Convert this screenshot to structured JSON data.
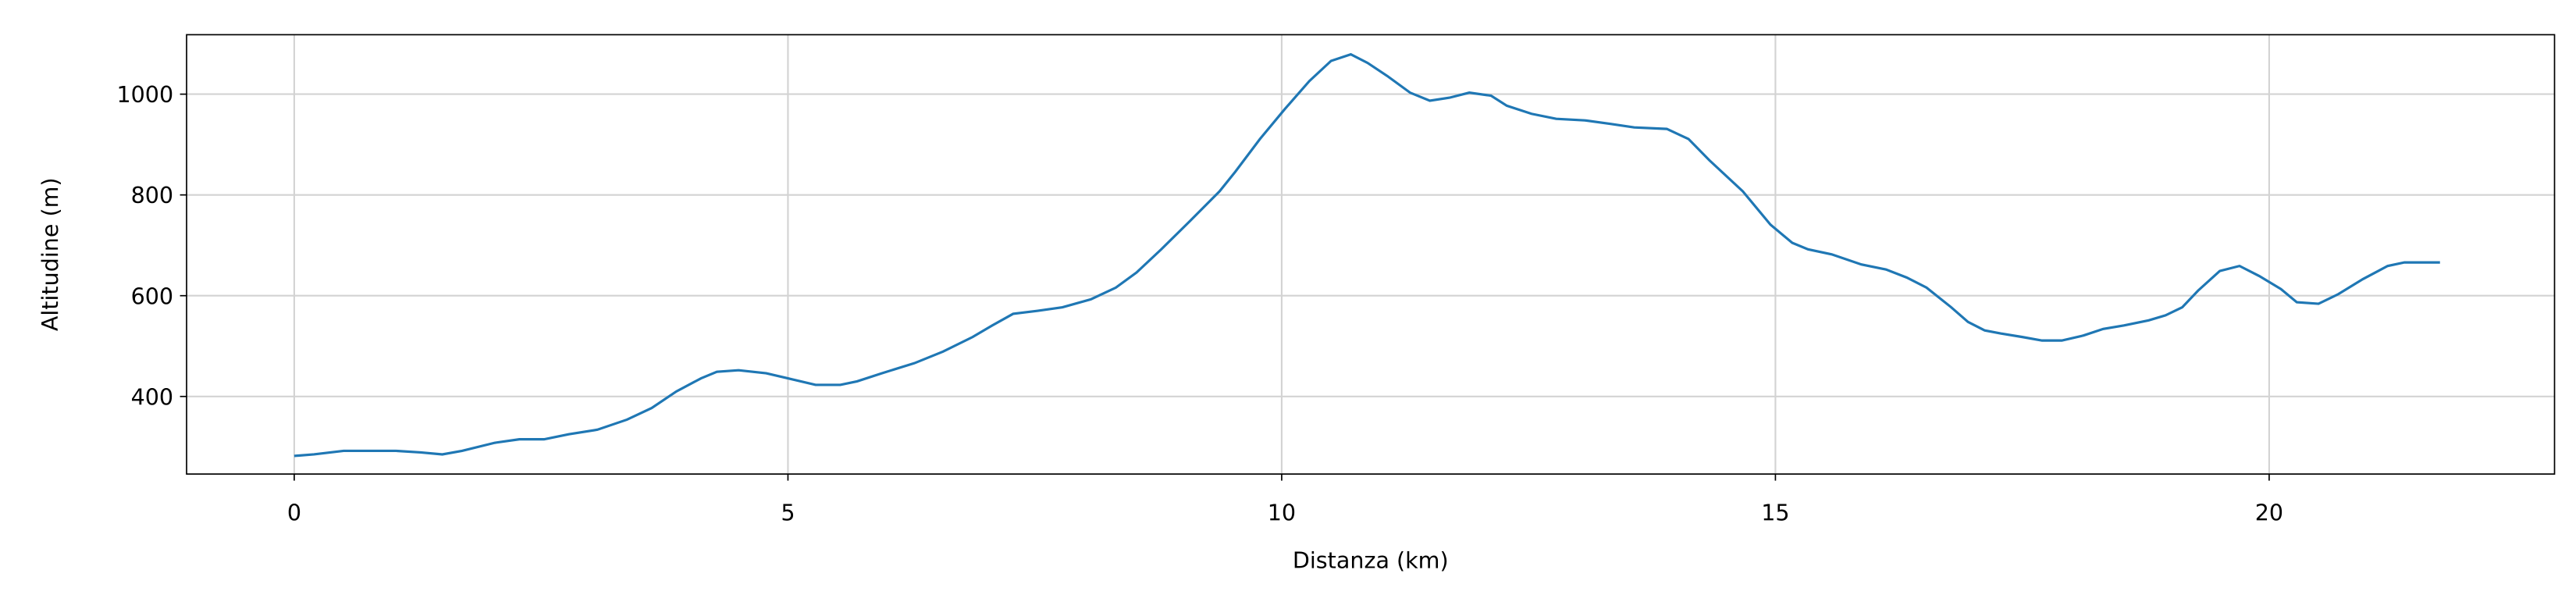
{
  "chart_data": {
    "type": "line",
    "xlabel": "Distanza (km)",
    "ylabel": "Altitudine (m)",
    "x": [
      0,
      0.2,
      0.5,
      1.03,
      1.28,
      1.5,
      1.7,
      2.03,
      2.28,
      2.53,
      2.78,
      3.07,
      3.37,
      3.62,
      3.87,
      4.12,
      4.28,
      4.5,
      4.78,
      5,
      5.28,
      5.53,
      5.7,
      5.95,
      6.28,
      6.57,
      6.87,
      7.07,
      7.28,
      7.53,
      7.78,
      8.07,
      8.32,
      8.53,
      8.78,
      9.07,
      9.37,
      9.53,
      9.78,
      10.03,
      10.28,
      10.5,
      10.7,
      10.87,
      11.07,
      11.3,
      11.5,
      11.7,
      11.9,
      12.12,
      12.28,
      12.53,
      12.78,
      13.07,
      13.33,
      13.57,
      13.9,
      14.12,
      14.33,
      14.67,
      14.95,
      15.17,
      15.33,
      15.57,
      15.87,
      16.12,
      16.33,
      16.53,
      16.78,
      16.95,
      17.12,
      17.28,
      17.5,
      17.7,
      17.9,
      18.12,
      18.32,
      18.53,
      18.78,
      18.95,
      19.12,
      19.28,
      19.5,
      19.7,
      19.9,
      20.12,
      20.28,
      20.5,
      20.7,
      20.95,
      21.2,
      21.37,
      21.73
    ],
    "series": [
      {
        "color": "#1f77b4",
        "values": [
          282,
          285,
          292,
          292,
          289,
          285,
          292,
          308,
          315,
          315,
          325,
          334,
          354,
          377,
          410,
          436,
          449,
          452,
          446,
          436,
          423,
          423,
          430,
          446,
          466,
          489,
          518,
          541,
          564,
          570,
          577,
          593,
          616,
          646,
          692,
          748,
          807,
          846,
          911,
          970,
          1026,
          1066,
          1079,
          1062,
          1036,
          1003,
          987,
          993,
          1003,
          997,
          977,
          961,
          951,
          948,
          941,
          934,
          931,
          911,
          869,
          807,
          741,
          705,
          692,
          682,
          662,
          652,
          636,
          616,
          577,
          548,
          531,
          525,
          518,
          511,
          511,
          521,
          534,
          541,
          551,
          561,
          577,
          610,
          649,
          659,
          639,
          613,
          587,
          584,
          603,
          633,
          659,
          666,
          666
        ]
      }
    ],
    "xlim": [
      -1.09,
      22.89
    ],
    "ylim": [
      246,
      1118
    ],
    "xticks": [
      0,
      5,
      10,
      15,
      20
    ],
    "yticks": [
      400,
      600,
      800,
      1000
    ],
    "grid": true
  }
}
